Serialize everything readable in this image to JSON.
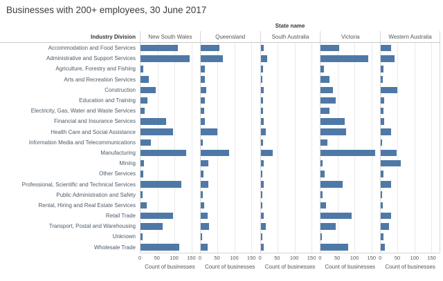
{
  "title": "Businesses with 200+ employees, 30 June 2017",
  "chart_data": {
    "type": "bar",
    "orientation": "horizontal",
    "col_header": "State name",
    "row_header": "Industry Division",
    "axis_label": "Count of businesses",
    "x_ticks": [
      0,
      50,
      100,
      150
    ],
    "x_max": 175,
    "grid": true,
    "bar_color": "#4e79a7",
    "categories": [
      "Accommodation and Food Services",
      "Administrative and Support Services",
      "Agriculture, Forestry and Fishing",
      "Arts and Recreation Services",
      "Construction",
      "Education and Training",
      "Electricity, Gas, Water and Waste Services",
      "Financial and Insurance Services",
      "Health Care and Social Assistance",
      "Information Media and Telecommunications",
      "Manufacturing",
      "Mining",
      "Other Services",
      "Professional, Scientific and Technical Services",
      "Public Administration and Safety",
      "Rental, Hiring and Real Estate Services",
      "Retail Trade",
      "Transport, Postal and Warehousing",
      "Unknown",
      "Wholesale Trade"
    ],
    "series": [
      {
        "name": "New South Wales",
        "values": [
          110,
          145,
          8,
          25,
          45,
          20,
          13,
          75,
          95,
          30,
          135,
          10,
          8,
          120,
          6,
          18,
          95,
          65,
          6,
          115
        ]
      },
      {
        "name": "Queensland",
        "values": [
          55,
          65,
          13,
          12,
          17,
          13,
          10,
          13,
          50,
          6,
          85,
          23,
          8,
          23,
          6,
          10,
          20,
          25,
          4,
          21
        ]
      },
      {
        "name": "South Australia",
        "values": [
          8,
          20,
          6,
          4,
          8,
          6,
          6,
          8,
          15,
          6,
          35,
          8,
          4,
          10,
          4,
          4,
          10,
          15,
          4,
          8
        ]
      },
      {
        "name": "Victoria",
        "values": [
          55,
          140,
          10,
          25,
          35,
          45,
          25,
          70,
          75,
          20,
          160,
          6,
          12,
          65,
          6,
          15,
          90,
          45,
          4,
          80
        ]
      },
      {
        "name": "Western Australia",
        "values": [
          30,
          40,
          8,
          6,
          50,
          10,
          8,
          10,
          30,
          4,
          48,
          60,
          8,
          30,
          4,
          6,
          30,
          25,
          8,
          12
        ]
      }
    ]
  }
}
